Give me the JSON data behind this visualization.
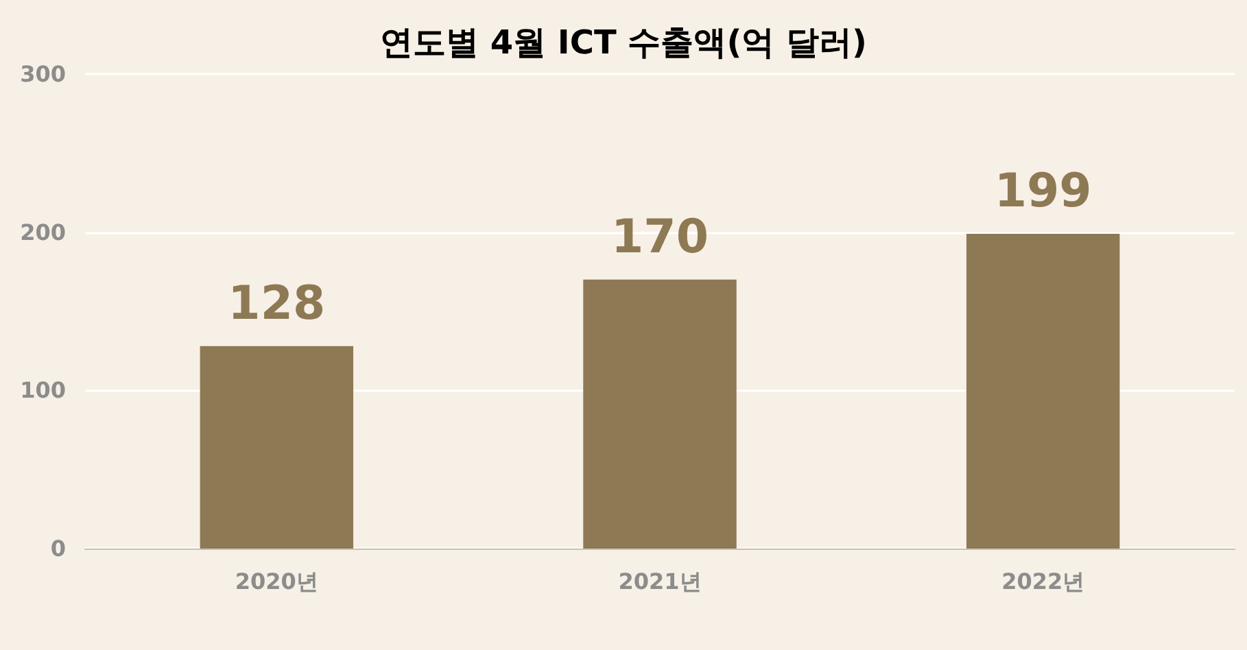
{
  "chart_data": {
    "type": "bar",
    "title": "연도별 4월 ICT 수출액(억 달러)",
    "categories": [
      "2020년",
      "2021년",
      "2022년"
    ],
    "values": [
      128,
      170,
      199
    ],
    "color": "#8e7955",
    "ylim": [
      0,
      300
    ],
    "yticks": [
      0,
      100,
      200,
      300
    ],
    "grid": "y",
    "data_labels": true
  }
}
